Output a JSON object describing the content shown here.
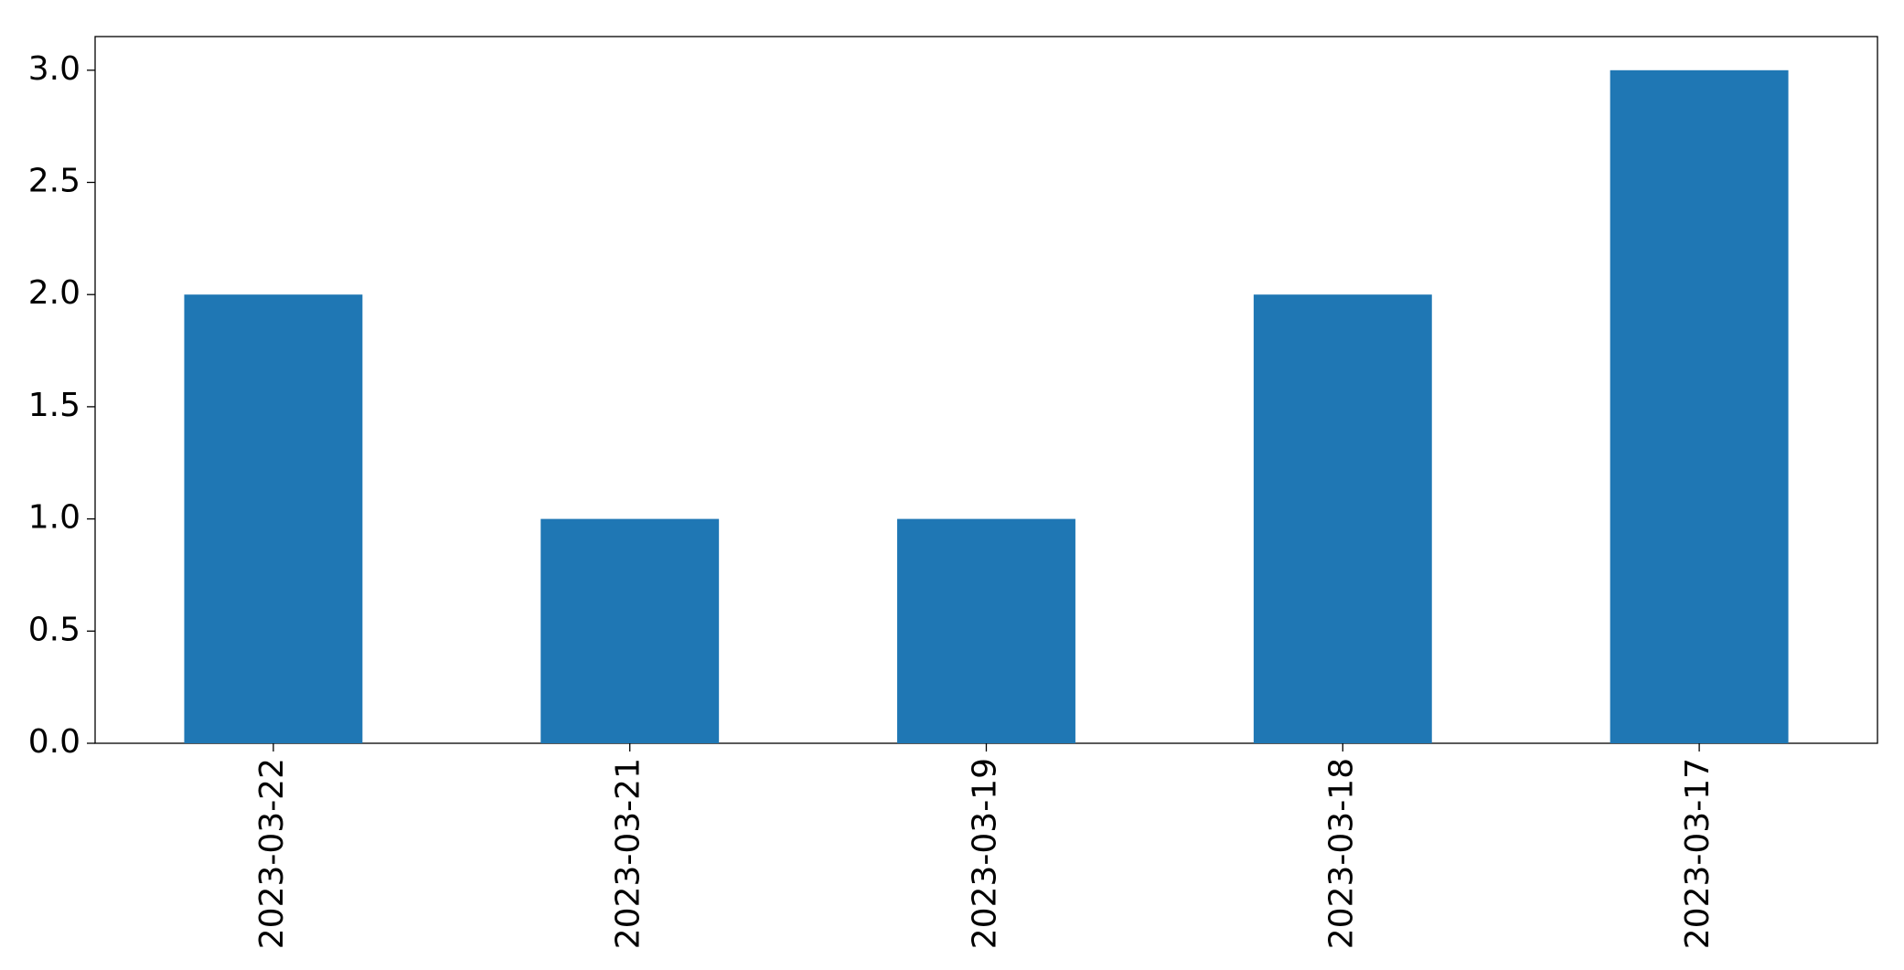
{
  "chart_data": {
    "type": "bar",
    "categories": [
      "2023-03-22",
      "2023-03-21",
      "2023-03-19",
      "2023-03-18",
      "2023-03-17"
    ],
    "values": [
      2,
      1,
      1,
      2,
      3
    ],
    "color": "#1f77b4",
    "ylim": [
      0,
      3.15
    ],
    "yticks": [
      {
        "value": 0,
        "label": "0.0"
      },
      0.5,
      {
        "value": 1,
        "label": "1.0"
      },
      1.5,
      {
        "value": 2,
        "label": "2.0"
      },
      2.5,
      {
        "value": 3,
        "label": "3.0"
      }
    ]
  }
}
